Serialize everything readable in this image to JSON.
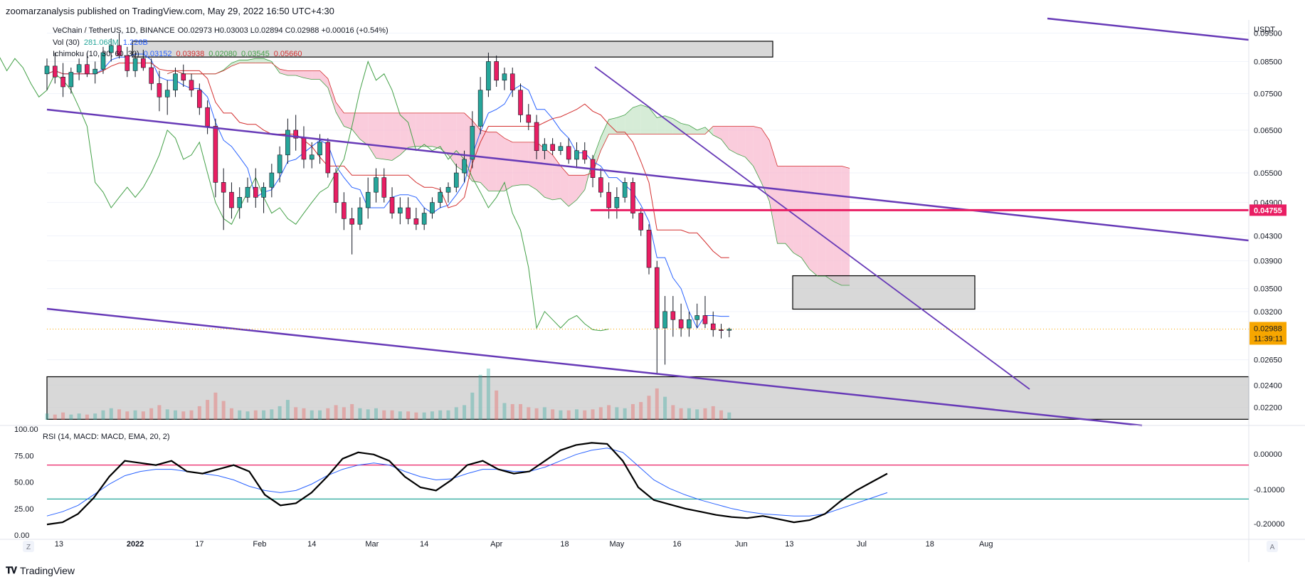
{
  "header": {
    "publish_line": "zoomarzanalysis published on TradingView.com, May 29, 2022 16:50 UTC+4:30"
  },
  "legend": {
    "main": "VeChain / TetherUS, 1D, BINANCE",
    "ohlc": "O0.02973 H0.03003 L0.02894 C0.02988 +0.00016 (+0.54%)",
    "vol_label": "Vol (30)",
    "vol_value": "281.068M",
    "vol_ma": "1.226B",
    "ichimoku_label": "Ichimoku (10, 30, 60, 30)",
    "ichimoku_values": [
      "0.03152",
      "0.03938",
      "0.02080",
      "0.03545",
      "0.05660"
    ]
  },
  "price_axis": {
    "currency": "USDT",
    "ticks": [
      "0.09500",
      "0.08500",
      "0.07500",
      "0.06500",
      "0.05500",
      "0.04900",
      "0.04300",
      "0.03900",
      "0.03500",
      "0.03200",
      "0.02650",
      "0.02400",
      "0.02200"
    ],
    "level_label": "0.04755",
    "last_price": "0.02988",
    "countdown": "11:39:11"
  },
  "rsi": {
    "label": "RSI (14, MACD: MACD, EMA, 20, 2)",
    "left_ticks": [
      "100.00",
      "75.00",
      "50.00",
      "25.00",
      "0.00"
    ],
    "right_ticks": [
      "0.00000",
      "-0.10000",
      "-0.20000"
    ]
  },
  "time_axis": {
    "labels": [
      "13",
      "2022",
      "17",
      "Feb",
      "14",
      "Mar",
      "14",
      "Apr",
      "18",
      "May",
      "16",
      "Jun",
      "13",
      "Jul",
      "18",
      "Aug"
    ],
    "left_button": "Z",
    "right_button": "A"
  },
  "footer": {
    "brand": "TradingView"
  },
  "colors": {
    "bull": "#26a69a",
    "bear": "#ef5350",
    "candle_body_up": "#26a69a",
    "candle_body_down": "#e91e63",
    "trendline": "#673ab7",
    "level": "#e91e63",
    "kijun": "#d32f2f",
    "tenkan": "#2962ff",
    "chikou": "#43a047",
    "cloud_bear": "#f8bbd0",
    "cloud_bull": "#c8e6c9",
    "zone": "#c8c8c8",
    "last_price": "#f7a600"
  },
  "chart_data": {
    "type": "candlestick",
    "symbol": "VeChain / TetherUS",
    "interval": "1D",
    "exchange": "BINANCE",
    "last_candle": {
      "date": "2022-05-29",
      "open": 0.02973,
      "high": 0.03003,
      "low": 0.02894,
      "close": 0.02988
    },
    "key_levels": [
      0.04755
    ],
    "zones": [
      {
        "from": 0.0865,
        "to": 0.092
      },
      {
        "from": 0.0323,
        "to": 0.0368
      },
      {
        "from": 0.021,
        "to": 0.0248
      }
    ],
    "candles": [
      {
        "date": "2021-12-10",
        "o": 0.081,
        "h": 0.086,
        "l": 0.076,
        "c": 0.0835
      },
      {
        "date": "2021-12-12",
        "o": 0.0835,
        "h": 0.088,
        "l": 0.078,
        "c": 0.08
      },
      {
        "date": "2021-12-14",
        "o": 0.08,
        "h": 0.0845,
        "l": 0.074,
        "c": 0.077
      },
      {
        "date": "2021-12-16",
        "o": 0.077,
        "h": 0.083,
        "l": 0.075,
        "c": 0.0815
      },
      {
        "date": "2021-12-18",
        "o": 0.0815,
        "h": 0.086,
        "l": 0.079,
        "c": 0.084
      },
      {
        "date": "2021-12-20",
        "o": 0.084,
        "h": 0.088,
        "l": 0.08,
        "c": 0.081
      },
      {
        "date": "2021-12-22",
        "o": 0.081,
        "h": 0.085,
        "l": 0.078,
        "c": 0.0825
      },
      {
        "date": "2021-12-24",
        "o": 0.0825,
        "h": 0.09,
        "l": 0.081,
        "c": 0.088
      },
      {
        "date": "2021-12-26",
        "o": 0.088,
        "h": 0.093,
        "l": 0.085,
        "c": 0.0905
      },
      {
        "date": "2021-12-28",
        "o": 0.0905,
        "h": 0.095,
        "l": 0.086,
        "c": 0.087
      },
      {
        "date": "2021-12-30",
        "o": 0.087,
        "h": 0.09,
        "l": 0.08,
        "c": 0.082
      },
      {
        "date": "2022-01-01",
        "o": 0.082,
        "h": 0.088,
        "l": 0.08,
        "c": 0.086
      },
      {
        "date": "2022-01-03",
        "o": 0.086,
        "h": 0.089,
        "l": 0.082,
        "c": 0.083
      },
      {
        "date": "2022-01-05",
        "o": 0.083,
        "h": 0.086,
        "l": 0.076,
        "c": 0.078
      },
      {
        "date": "2022-01-07",
        "o": 0.078,
        "h": 0.082,
        "l": 0.07,
        "c": 0.074
      },
      {
        "date": "2022-01-09",
        "o": 0.074,
        "h": 0.079,
        "l": 0.069,
        "c": 0.076
      },
      {
        "date": "2022-01-11",
        "o": 0.076,
        "h": 0.083,
        "l": 0.074,
        "c": 0.081
      },
      {
        "date": "2022-01-13",
        "o": 0.081,
        "h": 0.084,
        "l": 0.077,
        "c": 0.079
      },
      {
        "date": "2022-01-15",
        "o": 0.079,
        "h": 0.081,
        "l": 0.074,
        "c": 0.076
      },
      {
        "date": "2022-01-17",
        "o": 0.076,
        "h": 0.078,
        "l": 0.069,
        "c": 0.071
      },
      {
        "date": "2022-01-19",
        "o": 0.071,
        "h": 0.073,
        "l": 0.064,
        "c": 0.066
      },
      {
        "date": "2022-01-21",
        "o": 0.066,
        "h": 0.068,
        "l": 0.05,
        "c": 0.053
      },
      {
        "date": "2022-01-23",
        "o": 0.053,
        "h": 0.056,
        "l": 0.044,
        "c": 0.051
      },
      {
        "date": "2022-01-25",
        "o": 0.051,
        "h": 0.053,
        "l": 0.046,
        "c": 0.048
      },
      {
        "date": "2022-01-27",
        "o": 0.048,
        "h": 0.052,
        "l": 0.046,
        "c": 0.05
      },
      {
        "date": "2022-01-29",
        "o": 0.05,
        "h": 0.054,
        "l": 0.049,
        "c": 0.052
      },
      {
        "date": "2022-01-31",
        "o": 0.052,
        "h": 0.056,
        "l": 0.048,
        "c": 0.05
      },
      {
        "date": "2022-02-02",
        "o": 0.05,
        "h": 0.053,
        "l": 0.047,
        "c": 0.052
      },
      {
        "date": "2022-02-04",
        "o": 0.052,
        "h": 0.057,
        "l": 0.05,
        "c": 0.055
      },
      {
        "date": "2022-02-06",
        "o": 0.055,
        "h": 0.061,
        "l": 0.053,
        "c": 0.059
      },
      {
        "date": "2022-02-08",
        "o": 0.059,
        "h": 0.068,
        "l": 0.057,
        "c": 0.065
      },
      {
        "date": "2022-02-10",
        "o": 0.065,
        "h": 0.069,
        "l": 0.06,
        "c": 0.063
      },
      {
        "date": "2022-02-12",
        "o": 0.063,
        "h": 0.066,
        "l": 0.056,
        "c": 0.058
      },
      {
        "date": "2022-02-14",
        "o": 0.058,
        "h": 0.062,
        "l": 0.056,
        "c": 0.059
      },
      {
        "date": "2022-02-16",
        "o": 0.059,
        "h": 0.064,
        "l": 0.057,
        "c": 0.062
      },
      {
        "date": "2022-02-18",
        "o": 0.062,
        "h": 0.063,
        "l": 0.054,
        "c": 0.055
      },
      {
        "date": "2022-02-20",
        "o": 0.055,
        "h": 0.056,
        "l": 0.047,
        "c": 0.049
      },
      {
        "date": "2022-02-22",
        "o": 0.049,
        "h": 0.051,
        "l": 0.044,
        "c": 0.046
      },
      {
        "date": "2022-02-24",
        "o": 0.046,
        "h": 0.048,
        "l": 0.04,
        "c": 0.045
      },
      {
        "date": "2022-02-26",
        "o": 0.045,
        "h": 0.05,
        "l": 0.044,
        "c": 0.048
      },
      {
        "date": "2022-02-28",
        "o": 0.048,
        "h": 0.054,
        "l": 0.046,
        "c": 0.051
      },
      {
        "date": "2022-03-02",
        "o": 0.051,
        "h": 0.056,
        "l": 0.049,
        "c": 0.054
      },
      {
        "date": "2022-03-04",
        "o": 0.054,
        "h": 0.056,
        "l": 0.049,
        "c": 0.05
      },
      {
        "date": "2022-03-06",
        "o": 0.05,
        "h": 0.052,
        "l": 0.046,
        "c": 0.047
      },
      {
        "date": "2022-03-08",
        "o": 0.047,
        "h": 0.05,
        "l": 0.045,
        "c": 0.048
      },
      {
        "date": "2022-03-10",
        "o": 0.048,
        "h": 0.05,
        "l": 0.045,
        "c": 0.046
      },
      {
        "date": "2022-03-12",
        "o": 0.046,
        "h": 0.048,
        "l": 0.044,
        "c": 0.045
      },
      {
        "date": "2022-03-14",
        "o": 0.045,
        "h": 0.048,
        "l": 0.044,
        "c": 0.047
      },
      {
        "date": "2022-03-16",
        "o": 0.047,
        "h": 0.05,
        "l": 0.046,
        "c": 0.049
      },
      {
        "date": "2022-03-18",
        "o": 0.049,
        "h": 0.052,
        "l": 0.048,
        "c": 0.051
      },
      {
        "date": "2022-03-20",
        "o": 0.051,
        "h": 0.053,
        "l": 0.049,
        "c": 0.052
      },
      {
        "date": "2022-03-22",
        "o": 0.052,
        "h": 0.057,
        "l": 0.051,
        "c": 0.055
      },
      {
        "date": "2022-03-24",
        "o": 0.055,
        "h": 0.06,
        "l": 0.053,
        "c": 0.058
      },
      {
        "date": "2022-03-26",
        "o": 0.058,
        "h": 0.07,
        "l": 0.056,
        "c": 0.066
      },
      {
        "date": "2022-03-28",
        "o": 0.066,
        "h": 0.08,
        "l": 0.064,
        "c": 0.076
      },
      {
        "date": "2022-03-30",
        "o": 0.076,
        "h": 0.088,
        "l": 0.074,
        "c": 0.085
      },
      {
        "date": "2022-04-01",
        "o": 0.085,
        "h": 0.087,
        "l": 0.077,
        "c": 0.079
      },
      {
        "date": "2022-04-03",
        "o": 0.079,
        "h": 0.083,
        "l": 0.076,
        "c": 0.081
      },
      {
        "date": "2022-04-05",
        "o": 0.081,
        "h": 0.083,
        "l": 0.074,
        "c": 0.076
      },
      {
        "date": "2022-04-07",
        "o": 0.076,
        "h": 0.078,
        "l": 0.067,
        "c": 0.069
      },
      {
        "date": "2022-04-09",
        "o": 0.069,
        "h": 0.072,
        "l": 0.065,
        "c": 0.067
      },
      {
        "date": "2022-04-11",
        "o": 0.067,
        "h": 0.069,
        "l": 0.058,
        "c": 0.06
      },
      {
        "date": "2022-04-13",
        "o": 0.06,
        "h": 0.063,
        "l": 0.058,
        "c": 0.0615
      },
      {
        "date": "2022-04-15",
        "o": 0.0615,
        "h": 0.063,
        "l": 0.059,
        "c": 0.06
      },
      {
        "date": "2022-04-17",
        "o": 0.06,
        "h": 0.062,
        "l": 0.059,
        "c": 0.061
      },
      {
        "date": "2022-04-19",
        "o": 0.061,
        "h": 0.063,
        "l": 0.057,
        "c": 0.058
      },
      {
        "date": "2022-04-21",
        "o": 0.058,
        "h": 0.062,
        "l": 0.056,
        "c": 0.06
      },
      {
        "date": "2022-04-23",
        "o": 0.06,
        "h": 0.062,
        "l": 0.057,
        "c": 0.058
      },
      {
        "date": "2022-04-25",
        "o": 0.058,
        "h": 0.059,
        "l": 0.052,
        "c": 0.054
      },
      {
        "date": "2022-04-27",
        "o": 0.054,
        "h": 0.056,
        "l": 0.05,
        "c": 0.051
      },
      {
        "date": "2022-04-29",
        "o": 0.051,
        "h": 0.053,
        "l": 0.046,
        "c": 0.048
      },
      {
        "date": "2022-05-01",
        "o": 0.048,
        "h": 0.052,
        "l": 0.046,
        "c": 0.05
      },
      {
        "date": "2022-05-03",
        "o": 0.05,
        "h": 0.054,
        "l": 0.049,
        "c": 0.053
      },
      {
        "date": "2022-05-05",
        "o": 0.053,
        "h": 0.054,
        "l": 0.046,
        "c": 0.047
      },
      {
        "date": "2022-05-07",
        "o": 0.047,
        "h": 0.048,
        "l": 0.043,
        "c": 0.044
      },
      {
        "date": "2022-05-09",
        "o": 0.044,
        "h": 0.045,
        "l": 0.037,
        "c": 0.038
      },
      {
        "date": "2022-05-11",
        "o": 0.038,
        "h": 0.039,
        "l": 0.025,
        "c": 0.03
      },
      {
        "date": "2022-05-13",
        "o": 0.03,
        "h": 0.034,
        "l": 0.026,
        "c": 0.032
      },
      {
        "date": "2022-05-15",
        "o": 0.032,
        "h": 0.034,
        "l": 0.029,
        "c": 0.031
      },
      {
        "date": "2022-05-17",
        "o": 0.031,
        "h": 0.033,
        "l": 0.029,
        "c": 0.03
      },
      {
        "date": "2022-05-19",
        "o": 0.03,
        "h": 0.032,
        "l": 0.029,
        "c": 0.031
      },
      {
        "date": "2022-05-21",
        "o": 0.031,
        "h": 0.033,
        "l": 0.03,
        "c": 0.0315
      },
      {
        "date": "2022-05-23",
        "o": 0.0315,
        "h": 0.034,
        "l": 0.03,
        "c": 0.0305
      },
      {
        "date": "2022-05-25",
        "o": 0.0305,
        "h": 0.032,
        "l": 0.029,
        "c": 0.0298
      },
      {
        "date": "2022-05-27",
        "o": 0.0298,
        "h": 0.0305,
        "l": 0.0288,
        "c": 0.0297
      },
      {
        "date": "2022-05-29",
        "o": 0.02973,
        "h": 0.03003,
        "l": 0.02894,
        "c": 0.02988
      }
    ],
    "volume": [
      0.6,
      0.5,
      0.7,
      0.5,
      0.6,
      0.5,
      0.6,
      0.9,
      1.1,
      1.0,
      0.8,
      0.9,
      0.8,
      1.1,
      1.4,
      1.0,
      0.9,
      0.8,
      0.9,
      1.3,
      1.9,
      2.6,
      1.8,
      1.1,
      0.9,
      0.8,
      0.9,
      0.9,
      1.0,
      1.3,
      1.9,
      1.2,
      1.1,
      0.9,
      0.9,
      1.1,
      1.4,
      1.2,
      1.5,
      1.1,
      1.0,
      1.1,
      0.9,
      0.9,
      0.8,
      0.8,
      0.7,
      0.7,
      0.8,
      0.9,
      0.9,
      1.2,
      1.4,
      2.6,
      4.3,
      4.9,
      2.8,
      1.6,
      1.5,
      1.5,
      1.2,
      1.1,
      1.2,
      1.0,
      0.9,
      0.9,
      1.0,
      0.9,
      1.0,
      1.2,
      1.4,
      1.2,
      1.1,
      1.5,
      1.7,
      2.3,
      3.0,
      2.2,
      1.4,
      1.1,
      1.1,
      1.0,
      1.1,
      1.3,
      0.9,
      0.7
    ],
    "rsi_values": [
      10,
      12,
      20,
      35,
      55,
      70,
      68,
      66,
      70,
      60,
      58,
      62,
      66,
      60,
      38,
      28,
      30,
      40,
      55,
      72,
      78,
      76,
      70,
      55,
      45,
      42,
      52,
      66,
      70,
      62,
      58,
      60,
      70,
      80,
      85,
      87,
      86,
      70,
      45,
      33,
      29,
      25,
      22,
      19,
      17,
      16,
      18,
      15,
      12,
      14,
      20,
      32,
      42,
      50,
      58
    ],
    "rsi_signal": [
      18,
      22,
      28,
      38,
      48,
      56,
      60,
      62,
      62,
      60,
      58,
      56,
      52,
      46,
      42,
      40,
      42,
      48,
      56,
      62,
      66,
      68,
      66,
      60,
      55,
      52,
      53,
      58,
      62,
      62,
      60,
      60,
      64,
      70,
      76,
      80,
      82,
      78,
      65,
      52,
      44,
      38,
      33,
      29,
      25,
      22,
      20,
      19,
      18,
      18,
      20,
      25,
      30,
      35,
      40
    ],
    "rsi_levels": [
      66,
      34
    ],
    "rsi_ylim": [
      0,
      100
    ],
    "price_ylim": [
      0.0205,
      0.1
    ]
  }
}
